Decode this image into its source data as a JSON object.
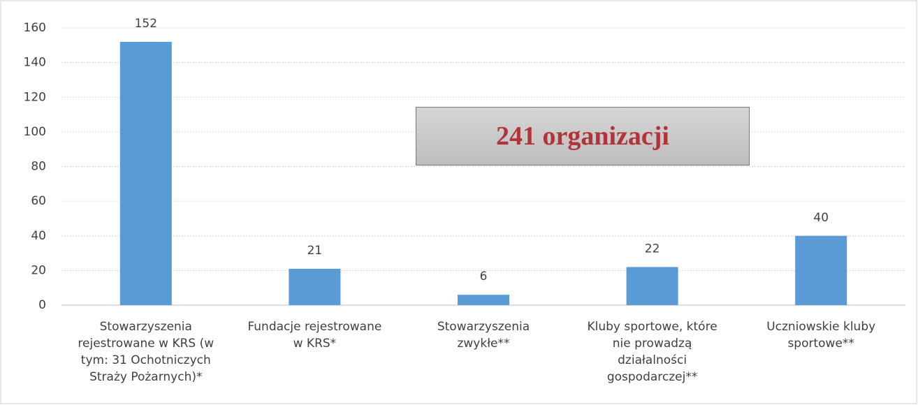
{
  "chart_data": {
    "type": "bar",
    "categories": [
      "Stowarzyszenia rejestrowane w KRS (w tym: 31 Ochotniczych Straży Pożarnych)*",
      "Fundacje rejestrowane w KRS*",
      "Stowarzyszenia zwykłe**",
      "Kluby sportowe, które nie prowadzą działalności gospodarczej**",
      "Uczniowskie kluby sportowe**"
    ],
    "values": [
      152,
      21,
      6,
      22,
      40
    ],
    "color": "#5b9bd5",
    "ylim": [
      0,
      160
    ],
    "yticks": [
      0,
      20,
      40,
      60,
      80,
      100,
      120,
      140,
      160
    ],
    "grid": true,
    "annotation": "241 organizacji"
  }
}
